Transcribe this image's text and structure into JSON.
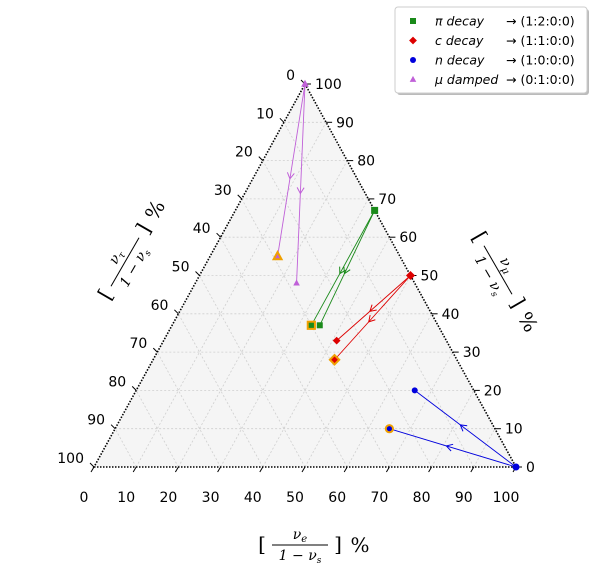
{
  "chart_data": {
    "type": "scatter",
    "subtype": "ternary",
    "axes": {
      "bottom": {
        "quantity": "nu_e",
        "label_numer": "ν",
        "label_numer_sub": "e",
        "label_denom": "1 − ν",
        "label_denom_sub": "s",
        "unit": "%"
      },
      "right": {
        "quantity": "nu_mu",
        "label_numer": "ν",
        "label_numer_sub": "μ",
        "label_denom": "1 − ν",
        "label_denom_sub": "s",
        "unit": "%"
      },
      "left": {
        "quantity": "nu_tau",
        "label_numer": "ν",
        "label_numer_sub": "τ",
        "label_denom": "1 − ν",
        "label_denom_sub": "s",
        "unit": "%"
      }
    },
    "ticks": [
      "0",
      "10",
      "20",
      "30",
      "40",
      "50",
      "60",
      "70",
      "80",
      "90",
      "100"
    ],
    "grid": true,
    "legend_position": "top-right",
    "series": [
      {
        "name": "π decay",
        "legend_suffix": "→ (1:2:0:0)",
        "marker": "square",
        "color": "#1a8a1a",
        "source": {
          "e": 33,
          "mu": 67,
          "tau": 0
        },
        "end_points": [
          {
            "e": 33,
            "mu": 37,
            "tau": 30,
            "highlight": true
          },
          {
            "e": 35,
            "mu": 37,
            "tau": 28
          }
        ]
      },
      {
        "name": "c decay",
        "legend_suffix": "→ (1:1:0:0)",
        "marker": "diamond",
        "color": "#dd0000",
        "source": {
          "e": 50,
          "mu": 50,
          "tau": 0
        },
        "end_points": [
          {
            "e": 43,
            "mu": 28,
            "tau": 29,
            "highlight": true
          },
          {
            "e": 41,
            "mu": 33,
            "tau": 26
          }
        ]
      },
      {
        "name": "n decay",
        "legend_suffix": "→ (1:0:0:0)",
        "marker": "circle",
        "color": "#0000dd",
        "source": {
          "e": 100,
          "mu": 0,
          "tau": 0
        },
        "end_points": [
          {
            "e": 65,
            "mu": 10,
            "tau": 25,
            "highlight": true
          },
          {
            "e": 66,
            "mu": 20,
            "tau": 14
          }
        ]
      },
      {
        "name": "μ damped",
        "legend_suffix": "→ (0:1:0:0)",
        "marker": "triangle",
        "color": "#c060d8",
        "source": {
          "e": 0,
          "mu": 100,
          "tau": 0
        },
        "end_points": [
          {
            "e": 16,
            "mu": 55,
            "tau": 29,
            "highlight": true
          },
          {
            "e": 24,
            "mu": 48,
            "tau": 28
          }
        ]
      }
    ]
  }
}
